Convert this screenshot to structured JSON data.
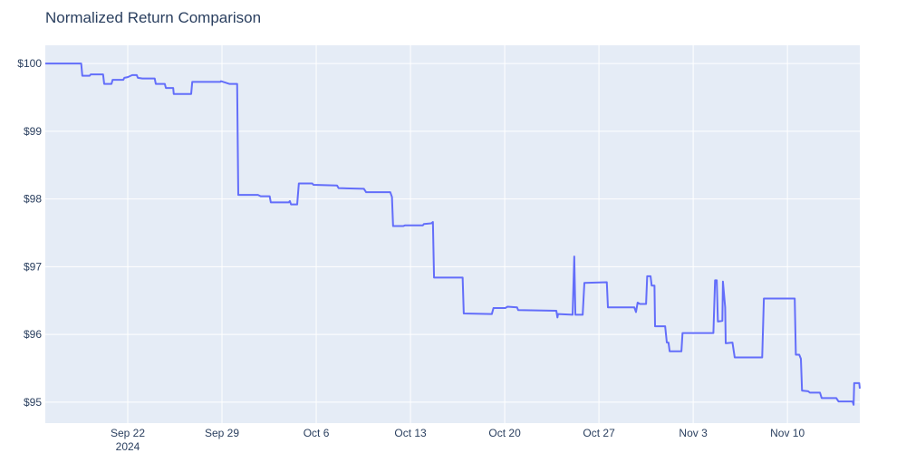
{
  "chart_data": {
    "type": "line",
    "title": "Normalized Return Comparison",
    "color": "#636efa",
    "grid": true,
    "x_year": "2024",
    "xlim": [
      "2024-09-15T21:00",
      "2024-11-15T09:00"
    ],
    "xticks": [
      {
        "value": "2024-09-22T00:00",
        "label": "Sep 22"
      },
      {
        "value": "2024-09-29T00:00",
        "label": "Sep 29"
      },
      {
        "value": "2024-10-06T00:00",
        "label": "Oct 6"
      },
      {
        "value": "2024-10-13T00:00",
        "label": "Oct 13"
      },
      {
        "value": "2024-10-20T00:00",
        "label": "Oct 20"
      },
      {
        "value": "2024-10-27T00:00",
        "label": "Oct 27"
      },
      {
        "value": "2024-11-03T00:00",
        "label": "Nov 3"
      },
      {
        "value": "2024-11-10T00:00",
        "label": "Nov 10"
      }
    ],
    "ylim": [
      94.69,
      100.27
    ],
    "yticks": [
      {
        "value": 95,
        "label": "$95"
      },
      {
        "value": 96,
        "label": "$96"
      },
      {
        "value": 97,
        "label": "$97"
      },
      {
        "value": 98,
        "label": "$98"
      },
      {
        "value": 99,
        "label": "$99"
      },
      {
        "value": 100,
        "label": "$100"
      }
    ],
    "x": [
      "2024-09-15T21:00",
      "2024-09-18T13:00",
      "2024-09-18T15:00",
      "2024-09-19T04:00",
      "2024-09-19T06:00",
      "2024-09-20T04:00",
      "2024-09-20T06:00",
      "2024-09-20T19:00",
      "2024-09-20T21:00",
      "2024-09-21T16:00",
      "2024-09-21T18:00",
      "2024-09-22T00:00",
      "2024-09-22T08:00",
      "2024-09-22T16:00",
      "2024-09-22T18:00",
      "2024-09-23T02:00",
      "2024-09-24T00:00",
      "2024-09-24T02:00",
      "2024-09-24T18:00",
      "2024-09-24T20:00",
      "2024-09-25T09:00",
      "2024-09-25T10:00",
      "2024-09-26T17:00",
      "2024-09-26T19:00",
      "2024-09-28T21:00",
      "2024-09-28T22:00",
      "2024-09-29T13:00",
      "2024-09-30T03:00",
      "2024-09-30T05:00",
      "2024-10-01T16:00",
      "2024-10-01T21:00",
      "2024-10-02T13:00",
      "2024-10-02T15:00",
      "2024-10-03T23:00",
      "2024-10-04T01:00",
      "2024-10-04T03:00",
      "2024-10-04T14:00",
      "2024-10-04T17:00",
      "2024-10-05T17:00",
      "2024-10-05T19:00",
      "2024-10-07T13:00",
      "2024-10-07T16:00",
      "2024-10-09T13:00",
      "2024-10-09T17:00",
      "2024-10-11T12:00",
      "2024-10-11T15:00",
      "2024-10-11T17:00",
      "2024-10-12T11:00",
      "2024-10-12T14:00",
      "2024-10-13T22:00",
      "2024-10-14T00:00",
      "2024-10-14T13:00",
      "2024-10-14T16:00",
      "2024-10-14T18:00",
      "2024-10-16T21:00",
      "2024-10-16T23:00",
      "2024-10-19T01:00",
      "2024-10-19T04:00",
      "2024-10-20T01:00",
      "2024-10-20T05:00",
      "2024-10-20T22:00",
      "2024-10-21T00:00",
      "2024-10-23T20:00",
      "2024-10-23T22:00",
      "2024-10-23T23:00",
      "2024-10-25T01:00",
      "2024-10-25T04:00",
      "2024-10-25T06:00",
      "2024-10-25T19:00",
      "2024-10-25T22:00",
      "2024-10-27T14:00",
      "2024-10-27T16:00",
      "2024-10-29T15:00",
      "2024-10-29T18:00",
      "2024-10-29T21:00",
      "2024-10-30T01:00",
      "2024-10-30T12:00",
      "2024-10-30T14:00",
      "2024-10-30T20:00",
      "2024-10-30T22:00",
      "2024-10-31T03:00",
      "2024-10-31T04:00",
      "2024-10-31T22:00",
      "2024-11-01T01:00",
      "2024-11-01T04:00",
      "2024-11-01T06:00",
      "2024-11-02T03:00",
      "2024-11-02T05:00",
      "2024-11-04T12:00",
      "2024-11-04T15:00",
      "2024-11-04T18:00",
      "2024-11-04T20:00",
      "2024-11-05T04:00",
      "2024-11-05T05:00",
      "2024-11-05T09:00",
      "2024-11-05T10:00",
      "2024-11-05T22:00",
      "2024-11-06T02:00",
      "2024-11-08T03:00",
      "2024-11-08T06:00",
      "2024-11-10T13:00",
      "2024-11-10T15:00",
      "2024-11-10T21:00",
      "2024-11-11T00:00",
      "2024-11-11T02:00",
      "2024-11-11T13:00",
      "2024-11-11T16:00",
      "2024-11-12T10:00",
      "2024-11-12T13:00",
      "2024-11-13T15:00",
      "2024-11-13T19:00",
      "2024-11-14T20:00",
      "2024-11-14T22:00",
      "2024-11-14T23:00",
      "2024-11-15T08:00",
      "2024-11-15T09:00"
    ],
    "values": [
      100.0,
      100.0,
      99.82,
      99.82,
      99.84,
      99.84,
      99.7,
      99.7,
      99.76,
      99.76,
      99.79,
      99.8,
      99.83,
      99.83,
      99.79,
      99.78,
      99.78,
      99.7,
      99.7,
      99.64,
      99.64,
      99.55,
      99.55,
      99.73,
      99.73,
      99.74,
      99.7,
      99.7,
      98.06,
      98.06,
      98.04,
      98.04,
      97.95,
      97.95,
      97.97,
      97.92,
      97.92,
      98.23,
      98.23,
      98.21,
      98.2,
      98.16,
      98.15,
      98.1,
      98.1,
      98.03,
      97.6,
      97.6,
      97.61,
      97.61,
      97.63,
      97.64,
      97.66,
      96.84,
      96.84,
      96.31,
      96.3,
      96.39,
      96.39,
      96.41,
      96.4,
      96.36,
      96.35,
      96.25,
      96.3,
      96.29,
      97.15,
      96.29,
      96.29,
      96.76,
      96.77,
      96.4,
      96.4,
      96.33,
      96.47,
      96.45,
      96.45,
      96.86,
      96.86,
      96.72,
      96.72,
      96.12,
      96.12,
      95.88,
      95.88,
      95.75,
      95.75,
      96.02,
      96.02,
      96.8,
      96.8,
      96.19,
      96.2,
      96.78,
      96.4,
      95.87,
      95.88,
      95.66,
      95.66,
      96.53,
      96.53,
      95.7,
      95.7,
      95.64,
      95.17,
      95.16,
      95.14,
      95.14,
      95.06,
      95.06,
      95.01,
      95.01,
      94.96,
      95.28,
      95.28,
      95.2
    ]
  }
}
